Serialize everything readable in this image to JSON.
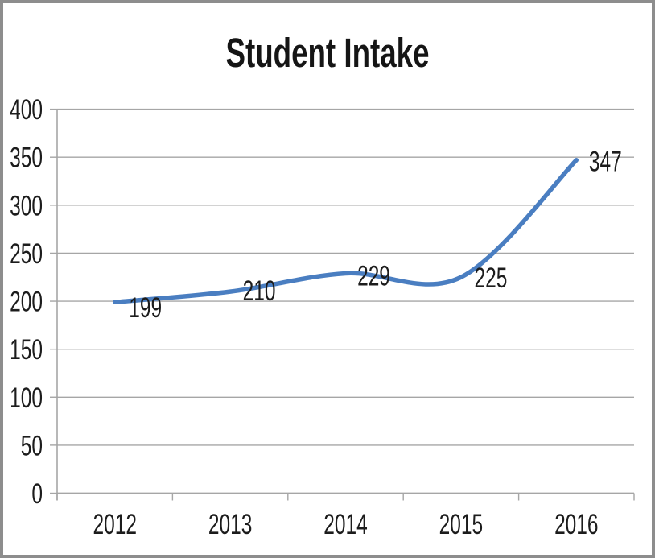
{
  "window": {
    "background": "#ffffff",
    "border_color": "#8d8d8d"
  },
  "chart_data": {
    "type": "line",
    "title": "Student Intake",
    "categories": [
      "2012",
      "2013",
      "2014",
      "2015",
      "2016"
    ],
    "values": [
      199,
      210,
      229,
      225,
      347
    ],
    "data_labels": [
      "199",
      "210",
      "229",
      "225",
      "347"
    ],
    "yticks": [
      "0",
      "50",
      "100",
      "150",
      "200",
      "250",
      "300",
      "350",
      "400"
    ],
    "ylim": [
      0,
      400
    ],
    "ytick_step": 50,
    "xlabel": "",
    "ylabel": "",
    "grid": "horizontal",
    "legend": "none",
    "smoothed_line": true,
    "line_color": "#4a7ec1",
    "gridline_color": "#a6a6a6",
    "axis_color": "#a6a6a6",
    "text_color": "#1c1c1c"
  }
}
